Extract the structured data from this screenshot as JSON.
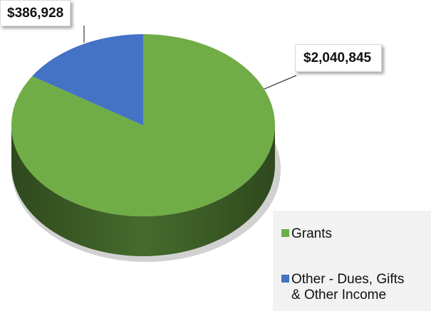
{
  "chart_data": {
    "type": "pie",
    "categories": [
      "Grants",
      "Other - Dues, Gifts & Other Income"
    ],
    "values": [
      2040845,
      386928
    ],
    "data_labels": [
      "$2,040,845",
      "$386,928"
    ],
    "colors": [
      "#70ad47",
      "#4472c4"
    ],
    "style": "3d",
    "legend": {
      "placement": "bottom-right",
      "items": [
        {
          "label": "Grants",
          "color": "#70ad47"
        },
        {
          "label": "Other - Dues, Gifts\n& Other Income",
          "color": "#4472c4"
        }
      ]
    }
  }
}
